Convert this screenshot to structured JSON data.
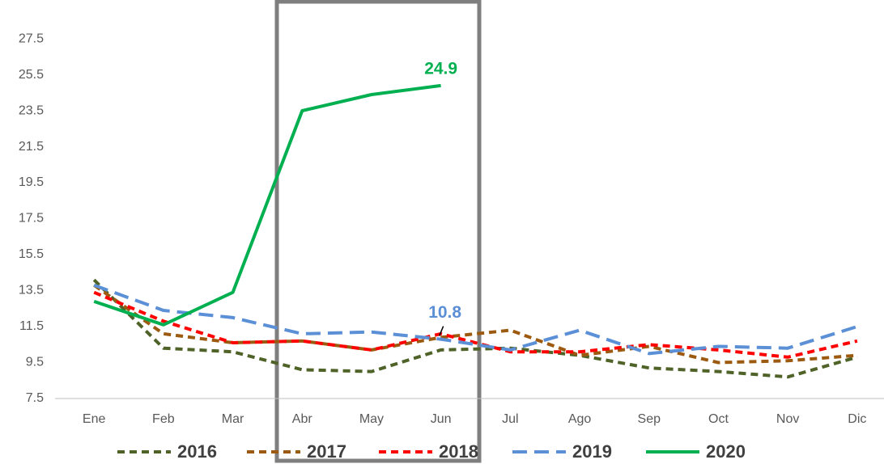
{
  "chart_data": {
    "type": "line",
    "categories": [
      "Ene",
      "Feb",
      "Mar",
      "Abr",
      "May",
      "Jun",
      "Jul",
      "Ago",
      "Sep",
      "Oct",
      "Nov",
      "Dic"
    ],
    "series": [
      {
        "name": "2016",
        "color": "#4f6228",
        "style": "dashed",
        "values": [
          14.1,
          10.3,
          10.1,
          9.1,
          9.0,
          10.2,
          10.3,
          9.9,
          9.2,
          9.0,
          8.7,
          9.8
        ]
      },
      {
        "name": "2017",
        "color": "#9c5a10",
        "style": "dashed",
        "values": [
          13.8,
          11.1,
          10.6,
          10.7,
          10.2,
          10.9,
          11.3,
          9.9,
          10.4,
          9.5,
          9.6,
          9.9
        ]
      },
      {
        "name": "2018",
        "color": "#ff0000",
        "style": "dashed",
        "values": [
          13.4,
          11.8,
          10.6,
          10.7,
          10.2,
          11.1,
          10.1,
          10.1,
          10.5,
          10.2,
          9.8,
          10.7
        ]
      },
      {
        "name": "2019",
        "color": "#5b8fd6",
        "style": "long-dashed",
        "values": [
          13.8,
          12.4,
          12.0,
          11.1,
          11.2,
          10.8,
          10.2,
          11.3,
          10.0,
          10.4,
          10.3,
          11.5
        ],
        "data_labels": [
          5
        ]
      },
      {
        "name": "2020",
        "color": "#00b050",
        "style": "solid",
        "values": [
          12.9,
          11.6,
          13.4,
          23.5,
          24.4,
          24.9,
          null,
          null,
          null,
          null,
          null,
          null
        ],
        "data_labels": [
          5
        ]
      }
    ],
    "ylim": [
      7.5,
      29.3
    ],
    "yticks": [
      7.5,
      9.5,
      11.5,
      13.5,
      15.5,
      17.5,
      19.5,
      21.5,
      23.5,
      25.5,
      27.5
    ],
    "grid": false,
    "legend": "bottom"
  }
}
